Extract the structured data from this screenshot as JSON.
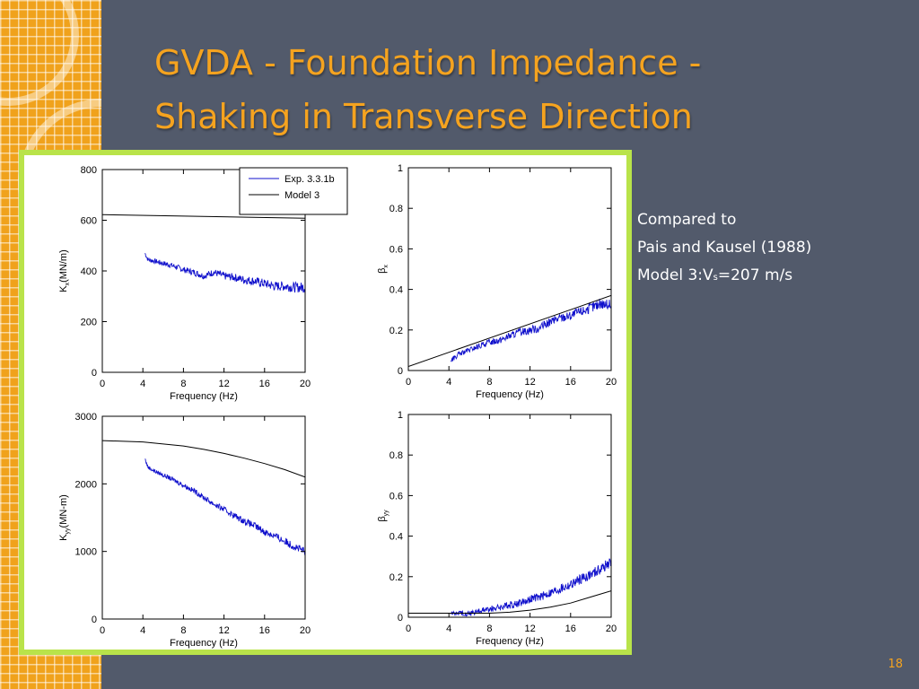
{
  "slide": {
    "title_line1": "GVDA - Foundation Impedance -",
    "title_line2": "Shaking in Transverse Direction",
    "side_text": {
      "line1": "Compared to",
      "line2": "Pais and Kausel (1988)",
      "line3_prefix": "Model 3:V",
      "line3_sub": "s",
      "line3_suffix": "=207 m/s"
    },
    "page_number": "18"
  },
  "colors": {
    "background": "#525a6b",
    "accent": "#f5a31f",
    "frame": "#b9e34a",
    "experiment_line": "#1010cc",
    "model_line": "#000000"
  },
  "legend": {
    "entries": [
      "Exp. 3.3.1b",
      "Model 3"
    ]
  },
  "chart_data": [
    {
      "type": "line",
      "xlabel": "Frequency (Hz)",
      "ylabel_main": "K",
      "ylabel_sub": "x",
      "ylabel_rest": "(MN/m)",
      "xlim": [
        0,
        20
      ],
      "ylim": [
        0,
        800
      ],
      "x_ticks": [
        0,
        4,
        8,
        12,
        16,
        20
      ],
      "y_ticks": [
        0,
        200,
        400,
        600,
        800
      ],
      "legend": "top-right",
      "series": [
        {
          "name": "Exp. 3.3.1b",
          "x": [
            4.2,
            4.5,
            5,
            6,
            7,
            8,
            9,
            10,
            11,
            12,
            13,
            14,
            15,
            16,
            17,
            18,
            19,
            20
          ],
          "y": [
            470,
            445,
            440,
            430,
            420,
            405,
            395,
            380,
            395,
            380,
            375,
            365,
            360,
            350,
            340,
            340,
            335,
            335
          ],
          "noise": 15
        },
        {
          "name": "Model 3",
          "x": [
            0,
            20
          ],
          "y": [
            622,
            608
          ],
          "noise": 0
        }
      ]
    },
    {
      "type": "line",
      "xlabel": "Frequency (Hz)",
      "ylabel_main": "β",
      "ylabel_sub": "x",
      "ylabel_rest": "",
      "xlim": [
        0,
        20
      ],
      "ylim": [
        0,
        1
      ],
      "x_ticks": [
        0,
        4,
        8,
        12,
        16,
        20
      ],
      "y_ticks": [
        0,
        0.2,
        0.4,
        0.6,
        0.8,
        1
      ],
      "series": [
        {
          "name": "Exp. 3.3.1b",
          "x": [
            4.2,
            5,
            6,
            7,
            8,
            9,
            10,
            11,
            12,
            13,
            14,
            15,
            16,
            17,
            18,
            19,
            20
          ],
          "y": [
            0.05,
            0.08,
            0.1,
            0.12,
            0.14,
            0.15,
            0.17,
            0.19,
            0.2,
            0.21,
            0.24,
            0.26,
            0.27,
            0.29,
            0.31,
            0.33,
            0.32
          ],
          "noise": 0.02
        },
        {
          "name": "Model 3",
          "x": [
            0,
            20
          ],
          "y": [
            0.02,
            0.37
          ],
          "noise": 0
        }
      ]
    },
    {
      "type": "line",
      "xlabel": "Frequency (Hz)",
      "ylabel_main": "K",
      "ylabel_sub": "yy",
      "ylabel_rest": "(MN-m)",
      "xlim": [
        0,
        20
      ],
      "ylim": [
        0,
        3000
      ],
      "x_ticks": [
        0,
        4,
        8,
        12,
        16,
        20
      ],
      "y_ticks": [
        0,
        1000,
        2000,
        3000
      ],
      "series": [
        {
          "name": "Exp. 3.3.1b",
          "x": [
            4.2,
            4.5,
            5,
            6,
            7,
            8,
            9,
            10,
            11,
            12,
            13,
            14,
            15,
            16,
            17,
            18,
            19,
            20
          ],
          "y": [
            2370,
            2250,
            2200,
            2130,
            2060,
            1980,
            1900,
            1800,
            1700,
            1620,
            1530,
            1450,
            1380,
            1290,
            1230,
            1150,
            1070,
            990
          ],
          "noise": 45
        },
        {
          "name": "Model 3",
          "x": [
            0,
            4,
            8,
            10,
            12,
            14,
            16,
            18,
            20
          ],
          "y": [
            2640,
            2620,
            2560,
            2510,
            2450,
            2380,
            2300,
            2210,
            2100
          ],
          "noise": 0
        }
      ]
    },
    {
      "type": "line",
      "xlabel": "Frequency (Hz)",
      "ylabel_main": "β",
      "ylabel_sub": "yy",
      "ylabel_rest": "",
      "xlim": [
        0,
        20
      ],
      "ylim": [
        0,
        1
      ],
      "x_ticks": [
        0,
        4,
        8,
        12,
        16,
        20
      ],
      "y_ticks": [
        0,
        0.2,
        0.4,
        0.6,
        0.8,
        1
      ],
      "series": [
        {
          "name": "Exp. 3.3.1b",
          "x": [
            4.2,
            5,
            6,
            7,
            8,
            9,
            10,
            11,
            12,
            13,
            14,
            15,
            16,
            17,
            18,
            19,
            20
          ],
          "y": [
            0.02,
            0.02,
            0.02,
            0.03,
            0.04,
            0.05,
            0.06,
            0.07,
            0.09,
            0.1,
            0.12,
            0.14,
            0.16,
            0.19,
            0.21,
            0.24,
            0.27
          ],
          "noise": 0.02
        },
        {
          "name": "Model 3",
          "x": [
            0,
            4,
            8,
            10,
            12,
            14,
            16,
            18,
            20
          ],
          "y": [
            0.02,
            0.02,
            0.02,
            0.025,
            0.035,
            0.05,
            0.07,
            0.1,
            0.13
          ],
          "noise": 0
        }
      ]
    }
  ]
}
